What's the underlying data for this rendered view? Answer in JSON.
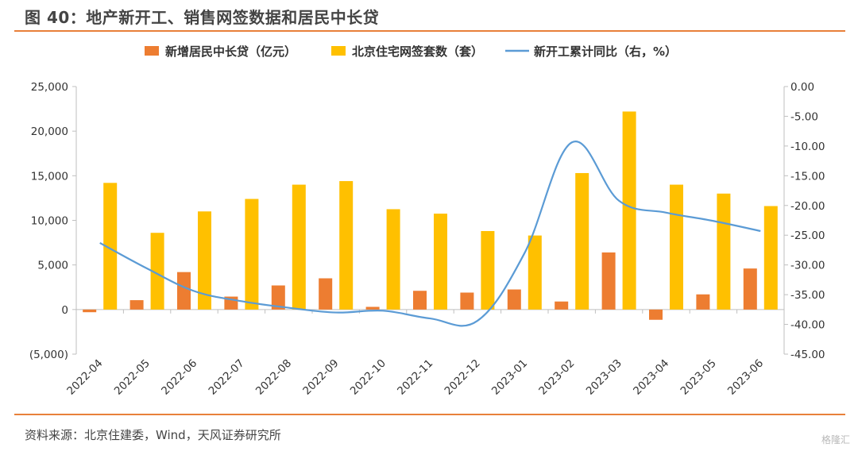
{
  "figure": {
    "title": "图 40：地产新开工、销售网签数据和居民中长贷",
    "source": "资料来源：北京住建委，Wind，天风证券研究所",
    "watermark": "格隆汇"
  },
  "colors": {
    "accent_rule": "#e8803a",
    "loans_bar": "#ed7d31",
    "sales_bar": "#ffc000",
    "starts_line": "#5b9bd5"
  },
  "chart_data": {
    "type": "bar",
    "categories": [
      "2022-04",
      "2022-05",
      "2022-06",
      "2022-07",
      "2022-08",
      "2022-09",
      "2022-10",
      "2022-11",
      "2022-12",
      "2023-01",
      "2023-02",
      "2023-03",
      "2023-04",
      "2023-05",
      "2023-06"
    ],
    "series": [
      {
        "name": "新增居民中长贷（亿元）",
        "type": "bar",
        "axis": "left",
        "color": "#ed7d31",
        "values": [
          -300,
          1050,
          4200,
          1450,
          2700,
          3500,
          300,
          2100,
          1900,
          2250,
          900,
          6400,
          -1150,
          1700,
          4600
        ]
      },
      {
        "name": "北京住宅网签套数（套）",
        "type": "bar",
        "axis": "left",
        "color": "#ffc000",
        "values": [
          14200,
          8600,
          11000,
          12400,
          14000,
          14400,
          11250,
          10750,
          8800,
          8300,
          15300,
          22200,
          14000,
          13000,
          11600
        ]
      },
      {
        "name": "新开工累计同比（右，%）",
        "type": "line",
        "axis": "right",
        "color": "#5b9bd5",
        "values": [
          -26.3,
          -30.6,
          -34.4,
          -36.1,
          -37.2,
          -38.0,
          -37.7,
          -39.0,
          -39.4,
          -28.0,
          -9.4,
          -19.2,
          -21.2,
          -22.6,
          -24.3
        ]
      }
    ],
    "y_left": {
      "range": [
        -5000,
        25000
      ],
      "ticks": [
        25000,
        20000,
        15000,
        10000,
        5000,
        0,
        -5000
      ],
      "tick_labels": [
        "25,000",
        "20,000",
        "15,000",
        "10,000",
        "5,000",
        "0",
        "(5,000)"
      ]
    },
    "y_right": {
      "range": [
        -45,
        0
      ],
      "ticks": [
        0,
        -5,
        -10,
        -15,
        -20,
        -25,
        -30,
        -35,
        -40,
        -45
      ],
      "tick_labels": [
        "0.00",
        "-5.00",
        "-10.00",
        "-15.00",
        "-20.00",
        "-25.00",
        "-30.00",
        "-35.00",
        "-40.00",
        "-45.00"
      ]
    },
    "legend_position": "top",
    "grid": false
  }
}
